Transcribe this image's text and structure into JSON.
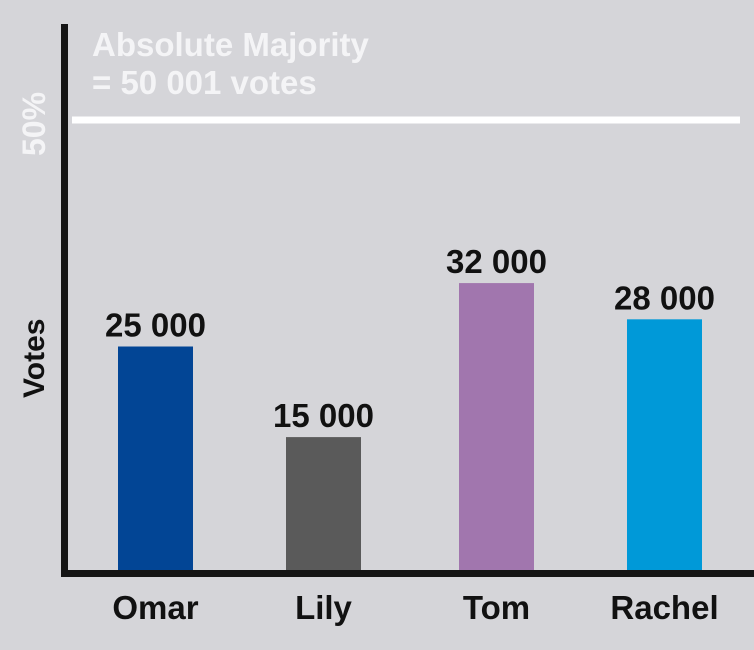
{
  "chart_data": {
    "type": "bar",
    "categories": [
      "Omar",
      "Lily",
      "Tom",
      "Rachel"
    ],
    "values": [
      25000,
      15000,
      32000,
      28000
    ],
    "data_labels": [
      "25 000",
      "15 000",
      "32 000",
      "28 000"
    ],
    "colors": [
      "#024595",
      "#5a5a5a",
      "#a176ae",
      "#0099d8"
    ],
    "xlabel": "",
    "ylabel": "Votes",
    "ylim": [
      0,
      50000
    ],
    "grid": false,
    "reference_line": {
      "value": 50000,
      "label": "50%",
      "color": "#ffffff"
    },
    "annotation": {
      "line1": "Absolute Majority",
      "line2": "= 50 001 votes"
    }
  }
}
